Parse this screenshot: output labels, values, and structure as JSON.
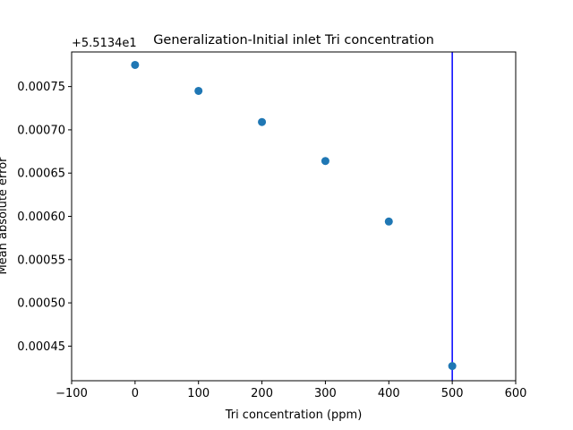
{
  "chart_data": {
    "type": "scatter",
    "title": "Generalization-Initial inlet Tri concentration",
    "xlabel": "Tri concentration (ppm)",
    "ylabel": "Mean absolute error",
    "offset_text": "+5.5134e1",
    "xlim": [
      -100,
      600
    ],
    "ylim": [
      0.00041,
      0.00079
    ],
    "xticks": [
      -100,
      0,
      100,
      200,
      300,
      400,
      500,
      600
    ],
    "xtick_labels": [
      "−100",
      "0",
      "100",
      "200",
      "300",
      "400",
      "500",
      "600"
    ],
    "yticks": [
      0.00045,
      0.0005,
      0.00055,
      0.0006,
      0.00065,
      0.0007,
      0.00075
    ],
    "ytick_labels": [
      "0.00045",
      "0.00050",
      "0.00055",
      "0.00060",
      "0.00065",
      "0.00070",
      "0.00075"
    ],
    "grid": false,
    "series": [
      {
        "x": [
          0,
          100,
          200,
          300,
          400,
          500
        ],
        "y": [
          0.000775,
          0.000745,
          0.000709,
          0.000664,
          0.000594,
          0.000427
        ],
        "color": "#1f77b4"
      }
    ],
    "vline": {
      "x": 500,
      "color": "#0000ff"
    }
  }
}
